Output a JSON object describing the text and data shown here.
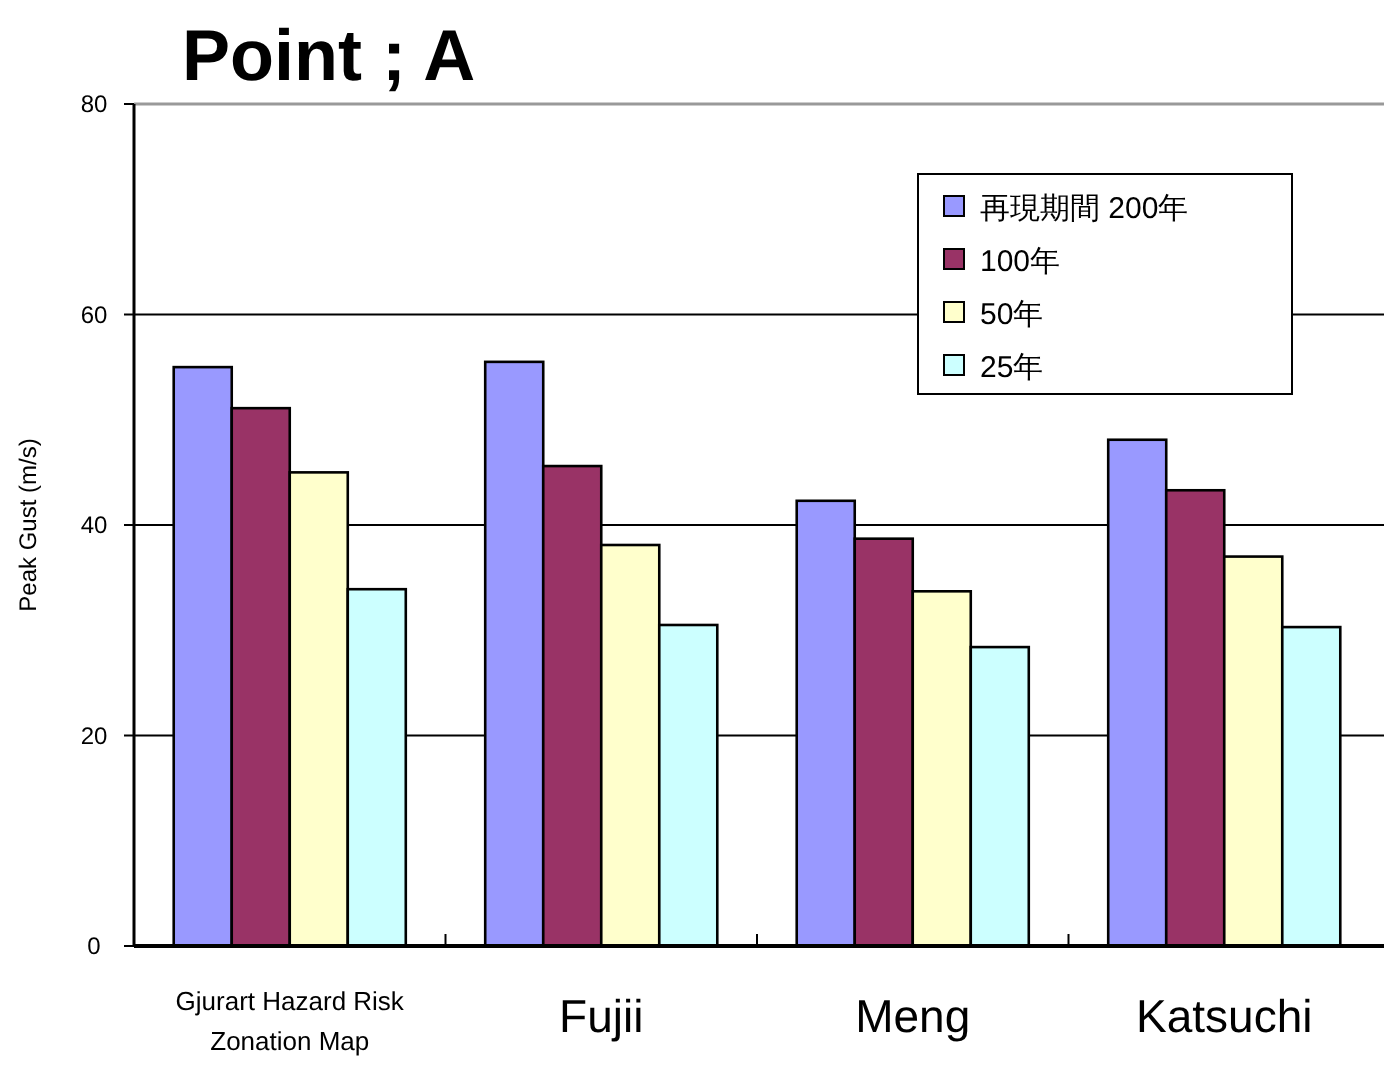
{
  "chart_data": {
    "type": "bar",
    "title": "Point ; A",
    "ylabel": "Peak Gust (m/s)",
    "categories": [
      "Gjurart Hazard Risk Zonation Map",
      "Fujii",
      "Meng",
      "Katsuchi"
    ],
    "series": [
      {
        "name": "再現期間  200年",
        "color": "#9999ff",
        "values": [
          55.0,
          55.5,
          42.3,
          48.1
        ]
      },
      {
        "name": "100年",
        "color": "#993366",
        "values": [
          51.1,
          45.6,
          38.7,
          43.3
        ]
      },
      {
        "name": "50年",
        "color": "#ffffcc",
        "values": [
          45.0,
          38.1,
          33.7,
          37.0
        ]
      },
      {
        "name": "25年",
        "color": "#ccffff",
        "values": [
          33.9,
          30.5,
          28.4,
          30.3
        ]
      }
    ],
    "ylim": [
      0,
      80
    ],
    "yticks": [
      0,
      20,
      40,
      60,
      80
    ],
    "grid": "y",
    "legend": "top right"
  }
}
